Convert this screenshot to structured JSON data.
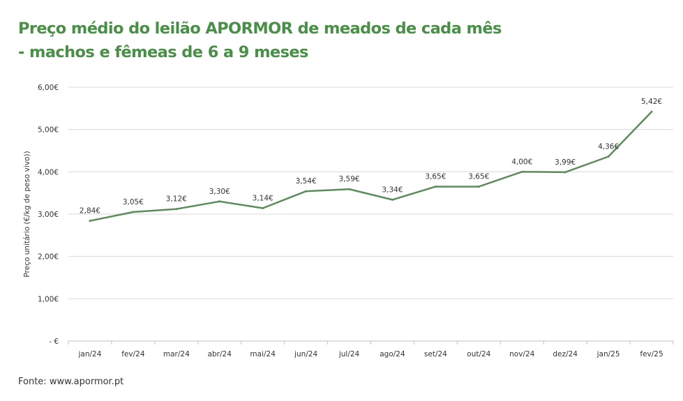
{
  "chart_data": {
    "type": "line",
    "title_lines": [
      "Preço médio do leilão APORMOR de meados de cada mês",
      "- machos e fêmeas de 6 a 9 meses"
    ],
    "ylabel": "Preço unitário (€/kg de peso vivo))",
    "xlabel": "",
    "categories": [
      "jan/24",
      "fev/24",
      "mar/24",
      "abr/24",
      "mai/24",
      "jun/24",
      "jul/24",
      "ago/24",
      "set/24",
      "out/24",
      "nov/24",
      "dez/24",
      "jan/25",
      "fev/25"
    ],
    "values": [
      2.84,
      3.05,
      3.12,
      3.3,
      3.14,
      3.54,
      3.59,
      3.34,
      3.65,
      3.65,
      4.0,
      3.99,
      4.36,
      5.42
    ],
    "data_labels": [
      "2,84€",
      "3,05€",
      "3,12€",
      "3,30€",
      "3,14€",
      "3,54€",
      "3,59€",
      "3,34€",
      "3,65€",
      "3,65€",
      "4,00€",
      "3,99€",
      "4,36€",
      "5,42€"
    ],
    "y_ticks": [
      0,
      1,
      2,
      3,
      4,
      5,
      6
    ],
    "y_tick_labels": [
      "- €",
      "1,00€",
      "2,00€",
      "3,00€",
      "4,00€",
      "5,00€",
      "6,00€"
    ],
    "ylim": [
      0,
      6
    ],
    "grid": true,
    "line_color": "#5b8c5a",
    "grid_color": "#d9d9d9",
    "title_color": "#4a8f47",
    "source": "Fonte: www.apormor.pt"
  }
}
